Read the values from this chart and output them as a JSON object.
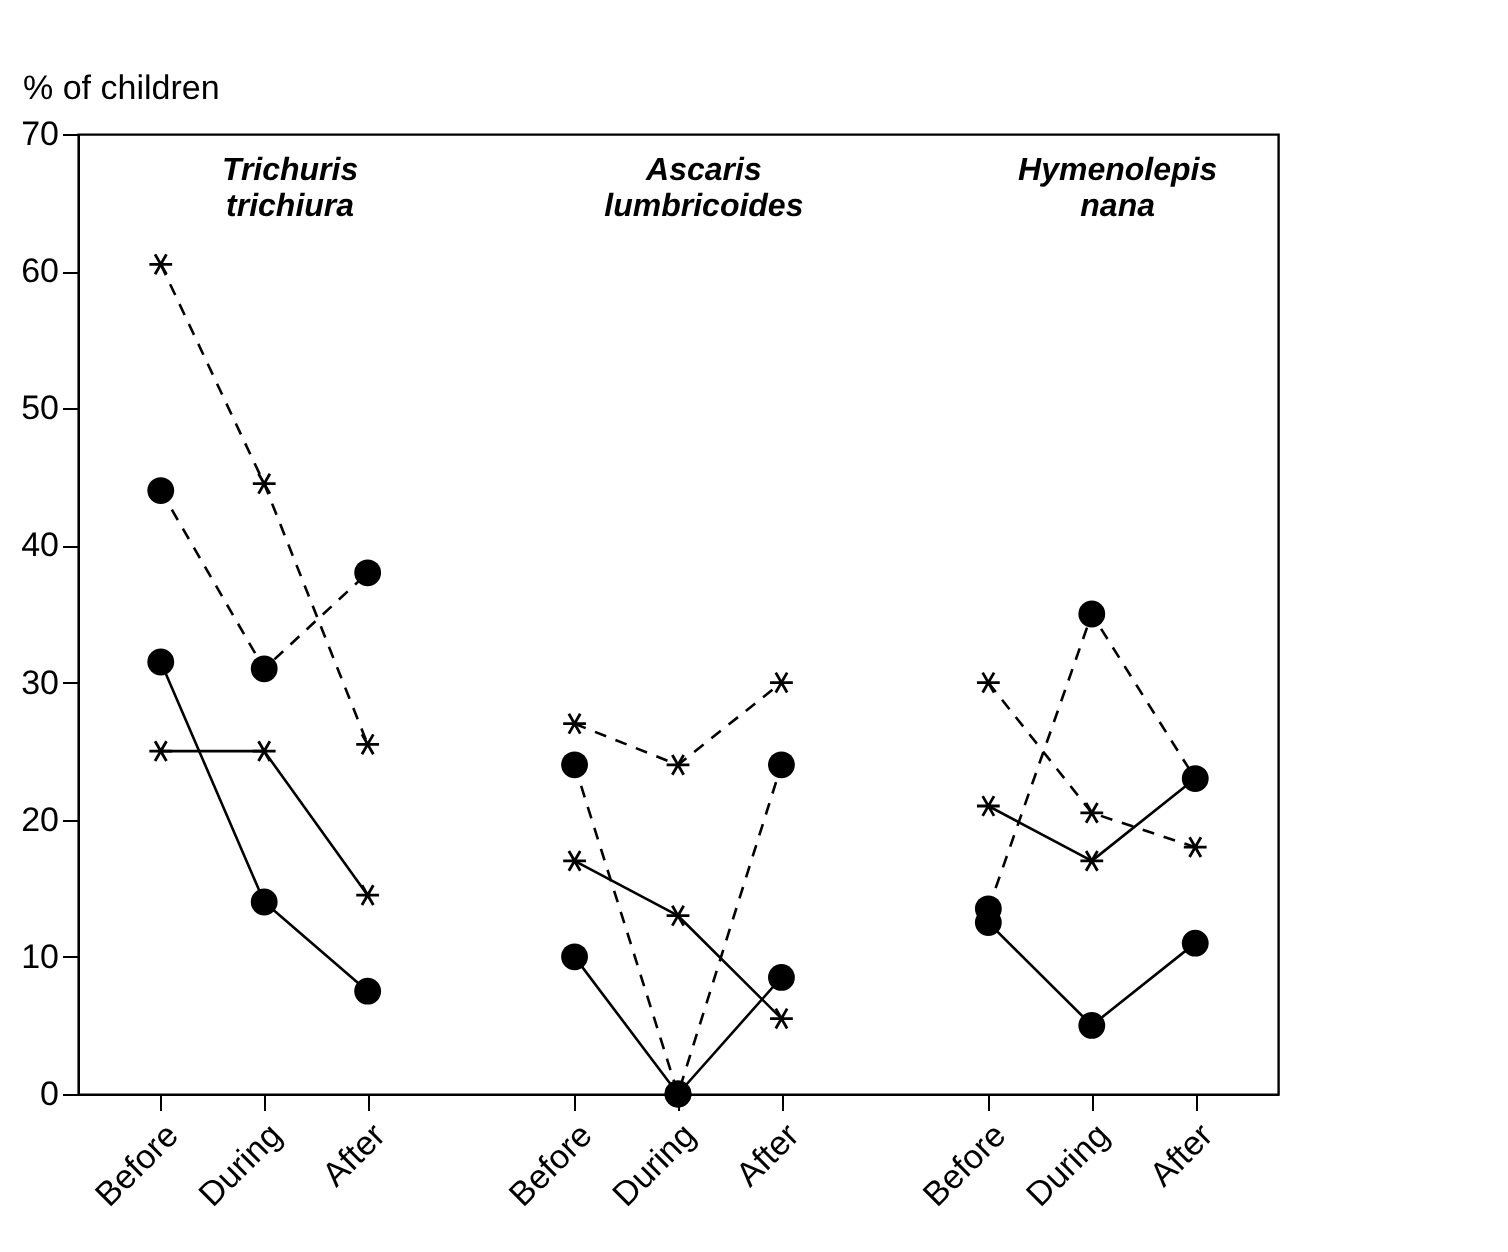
{
  "chart_data": {
    "type": "line",
    "ylabel": "% of children",
    "categories": [
      "Before",
      "During",
      "After",
      null,
      "Before",
      "During",
      "After",
      null,
      "Before",
      "During",
      "After"
    ],
    "series": [
      {
        "color": "#000000",
        "marker": "circle",
        "line_style": "solid",
        "values": [
          31.5,
          14,
          7.5,
          null,
          10,
          0,
          8.5,
          null,
          12.5,
          5,
          11
        ]
      },
      {
        "color": "#000000",
        "marker": "cross",
        "line_style": "solid",
        "values": [
          25,
          25,
          14.5,
          null,
          17,
          13,
          5.5,
          null,
          21,
          17,
          23
        ]
      },
      {
        "color": "#000000",
        "marker": "circle",
        "line_style": "dashed",
        "values": [
          44,
          31,
          38,
          null,
          24,
          0,
          24,
          null,
          13.5,
          35,
          23
        ]
      },
      {
        "color": "#000000",
        "marker": "cross",
        "line_style": "dashed",
        "values": [
          60.5,
          44.5,
          25.5,
          null,
          27,
          24,
          30,
          null,
          30,
          20.5,
          18
        ]
      }
    ],
    "annotations": [
      "Trichuris trichiura",
      "Ascaris lumbricoides",
      "Hymenolepis nana"
    ],
    "ylim": [
      0,
      70
    ],
    "yticks": [
      0,
      10,
      20,
      30,
      40,
      50,
      60,
      70
    ],
    "grid": false
  }
}
